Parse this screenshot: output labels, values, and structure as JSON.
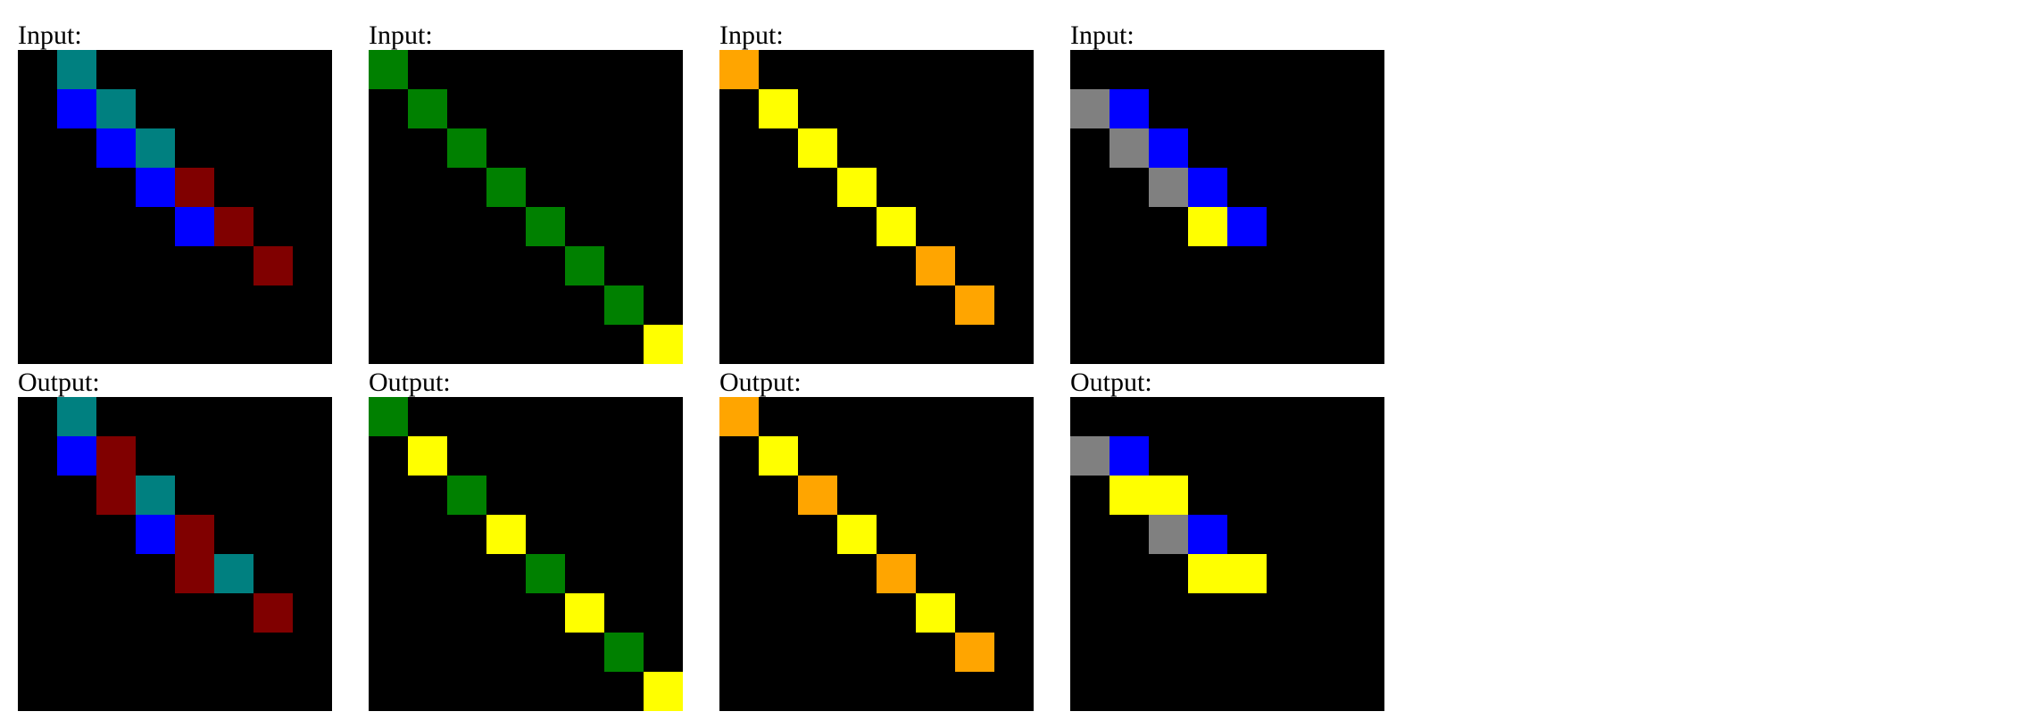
{
  "palette": {
    "0": "#000000",
    "1": "#0000ff",
    "2": "#800000",
    "3": "#008000",
    "4": "#ffff00",
    "5": "#808080",
    "7": "#ffa500",
    "8": "#008080"
  },
  "examples": [
    {
      "input_label": "Input:",
      "output_label": "Output:",
      "input": [
        [
          0,
          8,
          0,
          0,
          0,
          0,
          0,
          0
        ],
        [
          0,
          1,
          8,
          0,
          0,
          0,
          0,
          0
        ],
        [
          0,
          0,
          1,
          8,
          0,
          0,
          0,
          0
        ],
        [
          0,
          0,
          0,
          1,
          2,
          0,
          0,
          0
        ],
        [
          0,
          0,
          0,
          0,
          1,
          2,
          0,
          0
        ],
        [
          0,
          0,
          0,
          0,
          0,
          0,
          2,
          0
        ],
        [
          0,
          0,
          0,
          0,
          0,
          0,
          0,
          0
        ],
        [
          0,
          0,
          0,
          0,
          0,
          0,
          0,
          0
        ]
      ],
      "output": [
        [
          0,
          8,
          0,
          0,
          0,
          0,
          0,
          0
        ],
        [
          0,
          1,
          2,
          0,
          0,
          0,
          0,
          0
        ],
        [
          0,
          0,
          2,
          8,
          0,
          0,
          0,
          0
        ],
        [
          0,
          0,
          0,
          1,
          2,
          0,
          0,
          0
        ],
        [
          0,
          0,
          0,
          0,
          2,
          8,
          0,
          0
        ],
        [
          0,
          0,
          0,
          0,
          0,
          0,
          2,
          0
        ],
        [
          0,
          0,
          0,
          0,
          0,
          0,
          0,
          0
        ],
        [
          0,
          0,
          0,
          0,
          0,
          0,
          0,
          0
        ]
      ]
    },
    {
      "input_label": "Input:",
      "output_label": "Output:",
      "input": [
        [
          3,
          0,
          0,
          0,
          0,
          0,
          0,
          0
        ],
        [
          0,
          3,
          0,
          0,
          0,
          0,
          0,
          0
        ],
        [
          0,
          0,
          3,
          0,
          0,
          0,
          0,
          0
        ],
        [
          0,
          0,
          0,
          3,
          0,
          0,
          0,
          0
        ],
        [
          0,
          0,
          0,
          0,
          3,
          0,
          0,
          0
        ],
        [
          0,
          0,
          0,
          0,
          0,
          3,
          0,
          0
        ],
        [
          0,
          0,
          0,
          0,
          0,
          0,
          3,
          0
        ],
        [
          0,
          0,
          0,
          0,
          0,
          0,
          0,
          4
        ]
      ],
      "output": [
        [
          3,
          0,
          0,
          0,
          0,
          0,
          0,
          0
        ],
        [
          0,
          4,
          0,
          0,
          0,
          0,
          0,
          0
        ],
        [
          0,
          0,
          3,
          0,
          0,
          0,
          0,
          0
        ],
        [
          0,
          0,
          0,
          4,
          0,
          0,
          0,
          0
        ],
        [
          0,
          0,
          0,
          0,
          3,
          0,
          0,
          0
        ],
        [
          0,
          0,
          0,
          0,
          0,
          4,
          0,
          0
        ],
        [
          0,
          0,
          0,
          0,
          0,
          0,
          3,
          0
        ],
        [
          0,
          0,
          0,
          0,
          0,
          0,
          0,
          4
        ]
      ]
    },
    {
      "input_label": "Input:",
      "output_label": "Output:",
      "input": [
        [
          7,
          0,
          0,
          0,
          0,
          0,
          0,
          0
        ],
        [
          0,
          4,
          0,
          0,
          0,
          0,
          0,
          0
        ],
        [
          0,
          0,
          4,
          0,
          0,
          0,
          0,
          0
        ],
        [
          0,
          0,
          0,
          4,
          0,
          0,
          0,
          0
        ],
        [
          0,
          0,
          0,
          0,
          4,
          0,
          0,
          0
        ],
        [
          0,
          0,
          0,
          0,
          0,
          7,
          0,
          0
        ],
        [
          0,
          0,
          0,
          0,
          0,
          0,
          7,
          0
        ],
        [
          0,
          0,
          0,
          0,
          0,
          0,
          0,
          0
        ]
      ],
      "output": [
        [
          7,
          0,
          0,
          0,
          0,
          0,
          0,
          0
        ],
        [
          0,
          4,
          0,
          0,
          0,
          0,
          0,
          0
        ],
        [
          0,
          0,
          7,
          0,
          0,
          0,
          0,
          0
        ],
        [
          0,
          0,
          0,
          4,
          0,
          0,
          0,
          0
        ],
        [
          0,
          0,
          0,
          0,
          7,
          0,
          0,
          0
        ],
        [
          0,
          0,
          0,
          0,
          0,
          4,
          0,
          0
        ],
        [
          0,
          0,
          0,
          0,
          0,
          0,
          7,
          0
        ],
        [
          0,
          0,
          0,
          0,
          0,
          0,
          0,
          0
        ]
      ]
    },
    {
      "input_label": "Input:",
      "output_label": "Output:",
      "input": [
        [
          0,
          0,
          0,
          0,
          0,
          0,
          0,
          0
        ],
        [
          5,
          1,
          0,
          0,
          0,
          0,
          0,
          0
        ],
        [
          0,
          5,
          1,
          0,
          0,
          0,
          0,
          0
        ],
        [
          0,
          0,
          5,
          1,
          0,
          0,
          0,
          0
        ],
        [
          0,
          0,
          0,
          4,
          1,
          0,
          0,
          0
        ],
        [
          0,
          0,
          0,
          0,
          0,
          0,
          0,
          0
        ],
        [
          0,
          0,
          0,
          0,
          0,
          0,
          0,
          0
        ],
        [
          0,
          0,
          0,
          0,
          0,
          0,
          0,
          0
        ]
      ],
      "output": [
        [
          0,
          0,
          0,
          0,
          0,
          0,
          0,
          0
        ],
        [
          5,
          1,
          0,
          0,
          0,
          0,
          0,
          0
        ],
        [
          0,
          4,
          4,
          0,
          0,
          0,
          0,
          0
        ],
        [
          0,
          0,
          5,
          1,
          0,
          0,
          0,
          0
        ],
        [
          0,
          0,
          0,
          4,
          4,
          0,
          0,
          0
        ],
        [
          0,
          0,
          0,
          0,
          0,
          0,
          0,
          0
        ],
        [
          0,
          0,
          0,
          0,
          0,
          0,
          0,
          0
        ],
        [
          0,
          0,
          0,
          0,
          0,
          0,
          0,
          0
        ]
      ]
    }
  ]
}
